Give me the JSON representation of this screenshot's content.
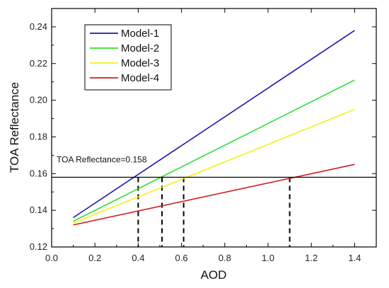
{
  "chart_data": {
    "type": "line",
    "xlabel": "AOD",
    "ylabel": "TOA Reflectance",
    "xlim": [
      0.0,
      1.5
    ],
    "ylim": [
      0.12,
      0.25
    ],
    "xticks": [
      "0.0",
      "0.2",
      "0.4",
      "0.6",
      "0.8",
      "1.0",
      "1.2",
      "1.4"
    ],
    "xtick_values": [
      0.0,
      0.2,
      0.4,
      0.6,
      0.8,
      1.0,
      1.2,
      1.4
    ],
    "yticks": [
      "0.12",
      "0.14",
      "0.16",
      "0.18",
      "0.20",
      "0.22",
      "0.24"
    ],
    "ytick_values": [
      0.12,
      0.14,
      0.16,
      0.18,
      0.2,
      0.22,
      0.24
    ],
    "grid": false,
    "legend_position": "top-left",
    "series": [
      {
        "name": "Model-1",
        "color": "#1a1aaa",
        "x": [
          0.1,
          1.4
        ],
        "y": [
          0.136,
          0.238
        ]
      },
      {
        "name": "Model-2",
        "color": "#33dd33",
        "x": [
          0.1,
          1.4
        ],
        "y": [
          0.134,
          0.211
        ]
      },
      {
        "name": "Model-3",
        "color": "#f2f21a",
        "x": [
          0.1,
          1.4
        ],
        "y": [
          0.133,
          0.195
        ]
      },
      {
        "name": "Model-4",
        "color": "#d01e1e",
        "x": [
          0.1,
          1.4
        ],
        "y": [
          0.132,
          0.165
        ]
      }
    ],
    "reference_line": {
      "y": 0.158,
      "label": "TOA Reflectance=0.158",
      "color": "#000000"
    },
    "intersections": [
      0.4,
      0.51,
      0.61,
      1.1
    ]
  }
}
